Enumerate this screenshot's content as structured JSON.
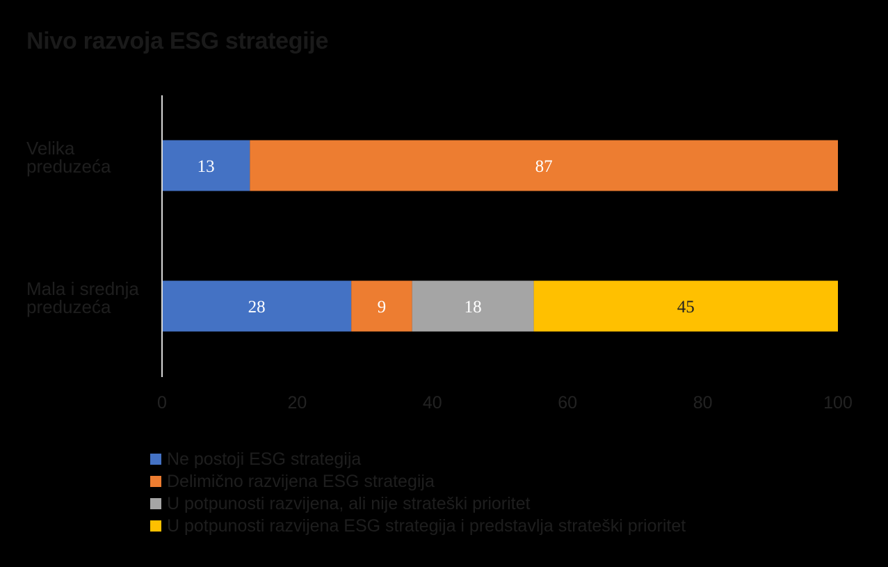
{
  "chart_data": {
    "type": "bar",
    "orientation": "horizontal",
    "stacked": true,
    "title": "Nivo razvoja ESG strategije",
    "categories": [
      [
        "Velika",
        "preduzeća"
      ],
      [
        "Mala i srednja",
        "preduzeća"
      ]
    ],
    "series": [
      {
        "name": "Ne postoji ESG strategija",
        "color": "#4472C4",
        "label_color": "#ffffff",
        "values": [
          13,
          28
        ]
      },
      {
        "name": "Delimično razvijena ESG strategija",
        "color": "#ED7D31",
        "label_color": "#ffffff",
        "values": [
          87,
          9
        ]
      },
      {
        "name": "U potpunosti razvijena, ali nije strateški prioritet",
        "color": "#A5A5A5",
        "label_color": "#ffffff",
        "values": [
          null,
          18
        ]
      },
      {
        "name": "U potpunosti razvijena ESG strategija i predstavlja strateški prioritet",
        "color": "#FFC000",
        "label_color": "#222222",
        "values": [
          null,
          45
        ]
      }
    ],
    "xlim": [
      0,
      100
    ],
    "xticks": [
      0,
      20,
      40,
      60,
      80,
      100
    ],
    "grid": false,
    "legend_position": "bottom"
  }
}
